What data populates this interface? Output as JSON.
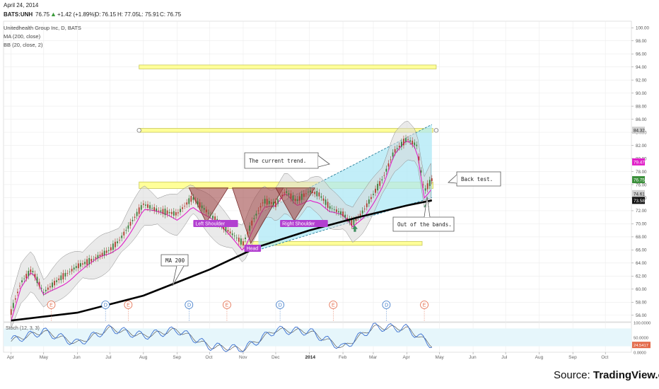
{
  "header": {
    "date": "April 24, 2014",
    "symbol": "BATS:UNH",
    "last": "76.75",
    "change": "+1.42 (+1.89%)",
    "o_label": "O:",
    "o": "76.15",
    "h_label": "H:",
    "h": "77.05",
    "l_label": "L:",
    "l": "75.91",
    "c_label": "C:",
    "c": "76.75"
  },
  "legend": {
    "title": "Unitedhealth Group Inc, D, BATS",
    "ma": "MA (200, close)",
    "bb": "BB (20, close, 2)"
  },
  "source": {
    "prefix": "Source: ",
    "brand": "TradingView.com"
  },
  "colors": {
    "price_up": "#3a7d3a",
    "price_down": "#b03a2e",
    "ma200": "#000000",
    "bb_mid": "#e020c8",
    "bb_fill": "#d8d8d8",
    "channel": "#aee8f5",
    "zone": "#ffff99",
    "head_shoulders": "#a04a4a",
    "stoch": "#3a6fd0",
    "stoch_signal": "#444444"
  },
  "annotations": {
    "trend": "The current trend.",
    "backtest": "Back test.",
    "bands": "Out of the bands.",
    "ma200": "MA 200",
    "left_shoulder": "Left Shoulder",
    "head": "Head",
    "right_shoulder": "Right Shoulder"
  },
  "events": [
    {
      "letter": "E",
      "x": "2013-05-08"
    },
    {
      "letter": "D",
      "x": "2013-06-27"
    },
    {
      "letter": "E",
      "x": "2013-07-18"
    },
    {
      "letter": "D",
      "x": "2013-09-12"
    },
    {
      "letter": "E",
      "x": "2013-10-17"
    },
    {
      "letter": "D",
      "x": "2013-12-05"
    },
    {
      "letter": "E",
      "x": "2014-01-23"
    },
    {
      "letter": "D",
      "x": "2014-03-13"
    },
    {
      "letter": "E",
      "x": "2014-04-17"
    }
  ],
  "price_labels": [
    {
      "value": "84.32",
      "style": "gray"
    },
    {
      "value": "79.47",
      "style": "magenta"
    },
    {
      "value": "76.75",
      "style": "green"
    },
    {
      "value": "74.61",
      "style": "gray"
    },
    {
      "value": "73.58",
      "style": "black"
    }
  ],
  "chart_data": {
    "type": "line",
    "title": "Unitedhealth Group Inc, D, BATS",
    "ylim": [
      55,
      101
    ],
    "y_ticks": [
      "56.00",
      "58.00",
      "60.00",
      "62.00",
      "64.00",
      "66.00",
      "68.00",
      "70.00",
      "72.00",
      "74.00",
      "76.00",
      "78.00",
      "80.00",
      "82.00",
      "84.00",
      "86.00",
      "88.00",
      "90.00",
      "92.00",
      "94.00",
      "96.00",
      "98.00",
      "100.00"
    ],
    "x_ticks": [
      "Apr",
      "May",
      "Jun",
      "Jul",
      "Aug",
      "Sep",
      "Oct",
      "Nov",
      "Dec",
      "2014",
      "Feb",
      "Mar",
      "Apr",
      "May",
      "Jun",
      "Jul",
      "Aug",
      "Sep",
      "Oct"
    ],
    "grid": true,
    "series": [
      {
        "name": "UNH",
        "x": [
          "2013-04-01",
          "2013-04-10",
          "2013-04-20",
          "2013-05-01",
          "2013-05-15",
          "2013-06-01",
          "2013-06-15",
          "2013-07-01",
          "2013-07-10",
          "2013-07-20",
          "2013-08-01",
          "2013-08-15",
          "2013-09-01",
          "2013-09-15",
          "2013-10-01",
          "2013-10-10",
          "2013-10-25",
          "2013-11-01",
          "2013-11-10",
          "2013-11-20",
          "2013-12-01",
          "2013-12-10",
          "2013-12-20",
          "2014-01-01",
          "2014-01-10",
          "2014-01-20",
          "2014-02-01",
          "2014-02-10",
          "2014-02-20",
          "2014-03-01",
          "2014-03-10",
          "2014-03-20",
          "2014-04-01",
          "2014-04-10",
          "2014-04-17",
          "2014-04-24"
        ],
        "y": [
          56.5,
          61.0,
          63.0,
          59.5,
          61.5,
          63.5,
          64.5,
          66.0,
          67.5,
          70.0,
          73.0,
          72.0,
          71.5,
          74.0,
          71.5,
          70.0,
          68.0,
          67.0,
          70.5,
          73.5,
          73.0,
          75.0,
          73.5,
          75.0,
          74.5,
          72.5,
          71.5,
          70.0,
          72.0,
          74.5,
          77.0,
          81.0,
          83.0,
          82.0,
          75.0,
          76.75
        ]
      },
      {
        "name": "MA (200, close)",
        "x": [
          "2013-04-01",
          "2013-06-01",
          "2013-08-01",
          "2013-10-01",
          "2013-11-15",
          "2014-01-01",
          "2014-02-15",
          "2014-04-01",
          "2014-04-24"
        ],
        "y": [
          55.2,
          56.4,
          59.0,
          63.0,
          66.5,
          69.0,
          71.0,
          72.8,
          73.58
        ]
      },
      {
        "name": "Stoch (12, 3, 3)",
        "x": [
          "2013-04-01",
          "2013-05-01",
          "2013-06-01",
          "2013-07-01",
          "2013-08-01",
          "2013-09-01",
          "2013-10-01",
          "2013-11-01",
          "2013-12-01",
          "2014-01-01",
          "2014-02-01",
          "2014-03-01",
          "2014-04-01",
          "2014-04-24"
        ],
        "y": [
          40,
          70,
          30,
          80,
          55,
          75,
          20,
          10,
          75,
          70,
          15,
          85,
          80,
          24.5417
        ]
      }
    ],
    "stoch_ylim": [
      0,
      100
    ],
    "stoch_ticks": [
      "100.0000",
      "50.0000",
      "24.5417",
      "0.0000"
    ],
    "stoch_label": "Stoch (12, 3, 3)"
  }
}
